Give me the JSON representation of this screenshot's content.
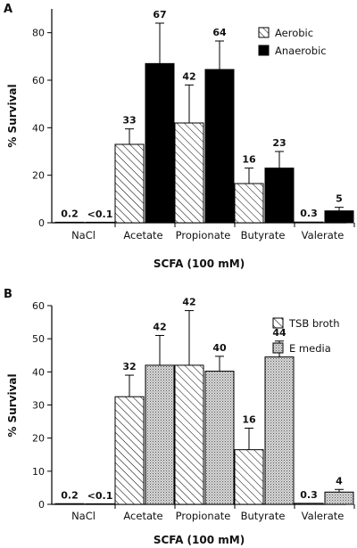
{
  "chart_data": [
    {
      "panel": "A",
      "type": "bar",
      "xlabel": "SCFA (100 mM)",
      "ylabel": "% Survival",
      "ylim": [
        0,
        90
      ],
      "yticks": [
        0,
        20,
        40,
        60,
        80
      ],
      "grid": false,
      "legend": "top-right",
      "categories": [
        "NaCl",
        "Acetate",
        "Propionate",
        "Butyrate",
        "Valerate"
      ],
      "series": [
        {
          "name": "Aerobic",
          "pattern": "hatch",
          "values": [
            0.2,
            33,
            42,
            16.5,
            0.3
          ],
          "errors": [
            0,
            6.5,
            16,
            6.5,
            0
          ],
          "labels": [
            "0.2",
            "33",
            "42",
            "16",
            "0.3"
          ]
        },
        {
          "name": "Anaerobic",
          "pattern": "solid",
          "color": "#000000",
          "values": [
            0.05,
            67,
            64.5,
            23,
            5
          ],
          "errors": [
            0,
            17,
            12,
            7,
            1.5
          ],
          "labels": [
            "<0.1",
            "67",
            "64",
            "23",
            "5"
          ]
        }
      ]
    },
    {
      "panel": "B",
      "type": "bar",
      "xlabel": "SCFA (100 mM)",
      "ylabel": "% Survival",
      "ylim": [
        0,
        60
      ],
      "yticks": [
        0,
        10,
        20,
        30,
        40,
        50,
        60
      ],
      "grid": false,
      "legend": "top-right",
      "categories": [
        "NaCl",
        "Acetate",
        "Propionate",
        "Butyrate",
        "Valerate"
      ],
      "series": [
        {
          "name": "TSB broth",
          "pattern": "hatch",
          "values": [
            0.2,
            32.5,
            42,
            16.5,
            0.3
          ],
          "errors": [
            0,
            6.5,
            16.5,
            6.5,
            0
          ],
          "labels": [
            "0.2",
            "32",
            "42",
            "16",
            "0.3"
          ]
        },
        {
          "name": "E media",
          "pattern": "stipple",
          "values": [
            0.05,
            42,
            40.2,
            44.5,
            3.7
          ],
          "errors": [
            0,
            9,
            4.5,
            4.8,
            0.8
          ],
          "labels": [
            "<0.1",
            "42",
            "40",
            "44",
            "4"
          ]
        }
      ]
    }
  ]
}
